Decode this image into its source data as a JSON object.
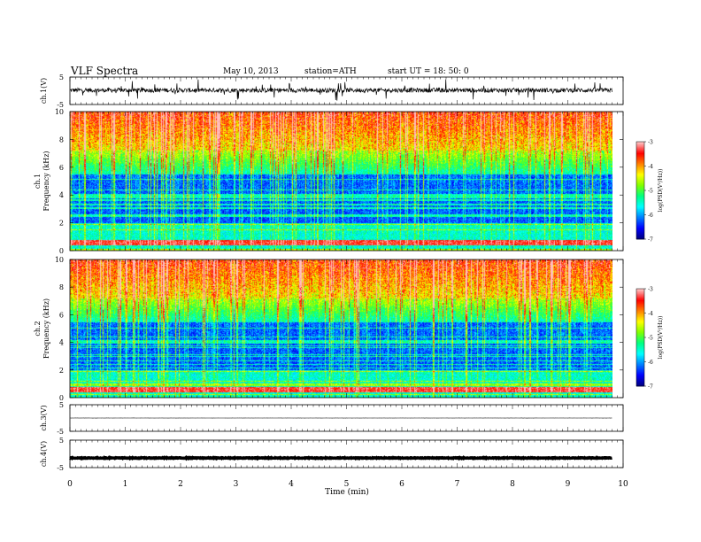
{
  "header": {
    "title": "VLF  Spectra",
    "date": "May 10, 2013",
    "station": "station=ATH",
    "start": "start  UT  =    18: 50: 0"
  },
  "colorbar": {
    "label": "log(PSD(V²/Hz))",
    "ticks": [
      "-3",
      "-4",
      "-5",
      "-6",
      "-7"
    ],
    "colors": [
      "#000080",
      "#0000ff",
      "#0080ff",
      "#00ffff",
      "#00ff80",
      "#80ff00",
      "#ffff00",
      "#ff8000",
      "#ff0000",
      "#ffc0c0"
    ]
  },
  "chart_data": [
    {
      "type": "line",
      "panel": "ch.1",
      "ylabel": "ch.1(V)",
      "ylim": [
        -5,
        5
      ],
      "yticks": [
        "5",
        "-5"
      ],
      "x_range": [
        0,
        9.8
      ],
      "description_values": "noisy broadband signal around 0.2 V with spikes to about ±4 V",
      "baseline": 0.2,
      "amplitude": 1.6
    },
    {
      "type": "heatmap",
      "panel": "ch.1 spectrogram",
      "ylabel_line1": "ch.1",
      "ylabel_line2": "Frequency (kHz)",
      "ylim": [
        0,
        10
      ],
      "yticks": [
        "0",
        "2",
        "4",
        "6",
        "8",
        "10"
      ],
      "x_range": [
        0,
        9.8
      ],
      "z_range": [
        -7,
        -3
      ],
      "z_unit": "log(PSD(V²/Hz))"
    },
    {
      "type": "heatmap",
      "panel": "ch.2 spectrogram",
      "ylabel_line1": "ch.2",
      "ylabel_line2": "Frequency (kHz)",
      "ylim": [
        0,
        10
      ],
      "yticks": [
        "0",
        "2",
        "4",
        "6",
        "8",
        "10"
      ],
      "x_range": [
        0,
        9.8
      ],
      "z_range": [
        -7,
        -3
      ],
      "z_unit": "log(PSD(V²/Hz))"
    },
    {
      "type": "line",
      "panel": "ch.3",
      "ylabel": "ch.3(V)",
      "ylim": [
        -5,
        5
      ],
      "yticks": [
        "5",
        "-5"
      ],
      "x_range": [
        0,
        9.8
      ],
      "baseline": 0.0,
      "amplitude": 0.05
    },
    {
      "type": "line",
      "panel": "ch.4",
      "ylabel": "ch.4(V)",
      "ylim": [
        -5,
        5
      ],
      "yticks": [
        "5",
        "-5"
      ],
      "x_range": [
        0,
        9.8
      ],
      "baseline": -1.5,
      "amplitude": 0.25
    }
  ],
  "x_axis": {
    "label": "Time  (min)",
    "xlim": [
      0,
      10
    ],
    "ticks": [
      "0",
      "1",
      "2",
      "3",
      "4",
      "5",
      "6",
      "7",
      "8",
      "9",
      "10"
    ]
  }
}
